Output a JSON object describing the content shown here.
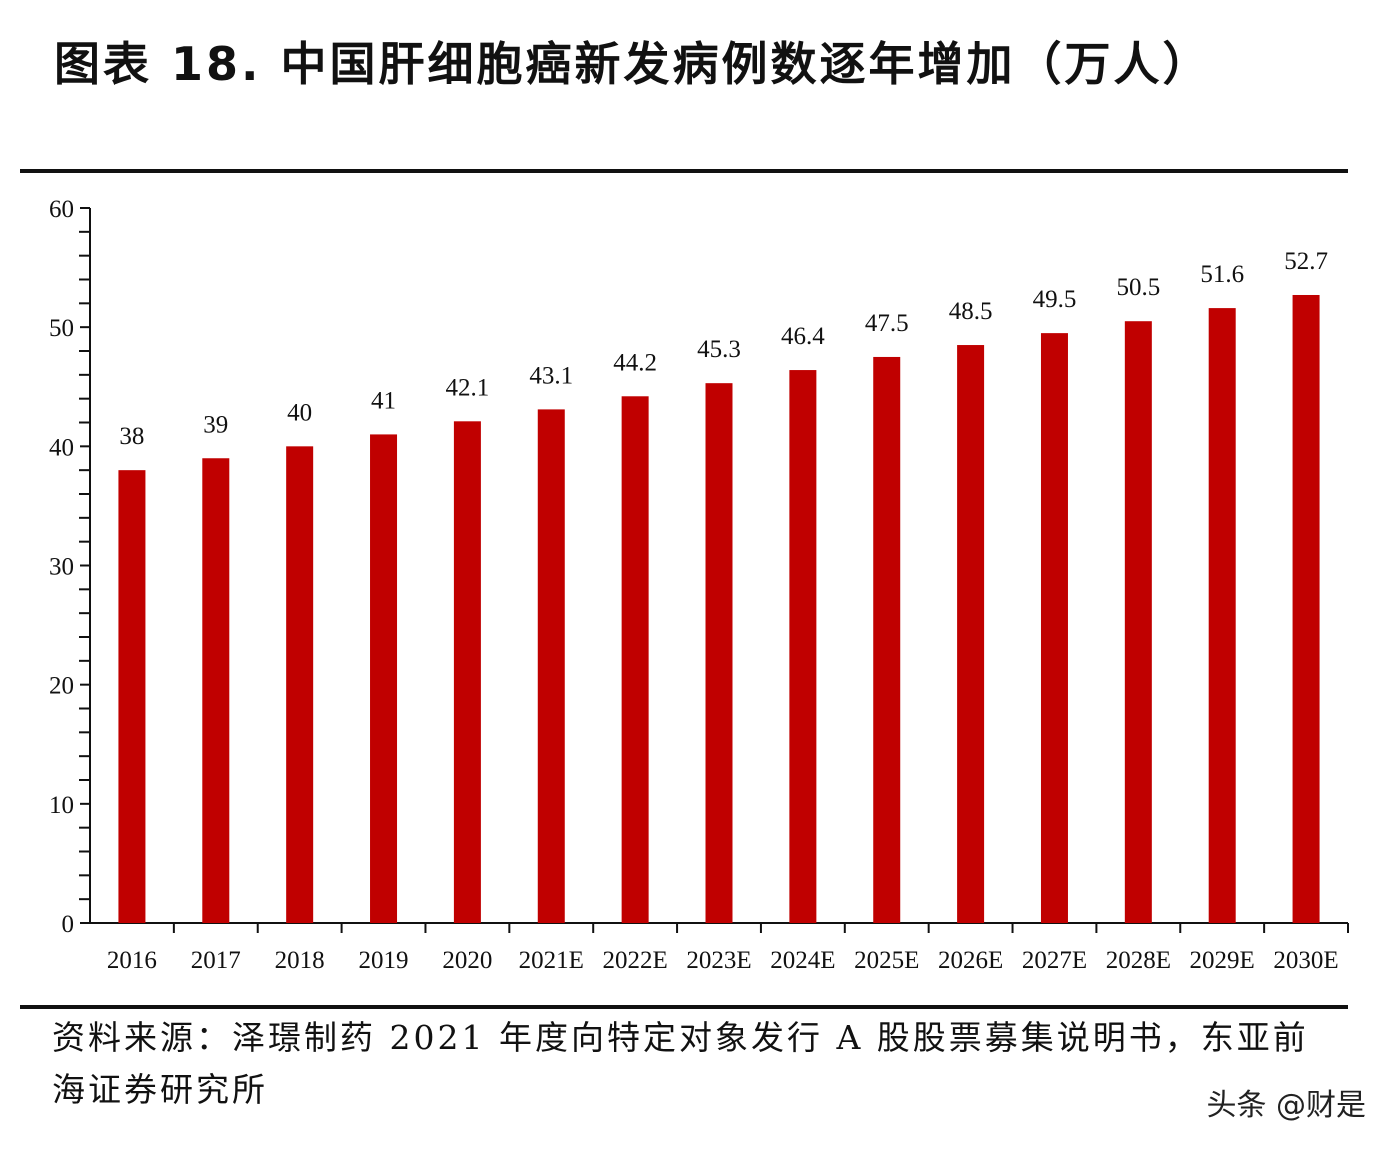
{
  "title": "图表 18. 中国肝细胞癌新发病例数逐年增加（万人）",
  "source": "资料来源：泽璟制药 2021 年度向特定对象发行 A 股股票募集说明书，东亚前海证券研究所",
  "watermark": "头条 @财是",
  "chart_data": {
    "type": "bar",
    "title": "图表 18. 中国肝细胞癌新发病例数逐年增加（万人）",
    "categories": [
      "2016",
      "2017",
      "2018",
      "2019",
      "2020",
      "2021E",
      "2022E",
      "2023E",
      "2024E",
      "2025E",
      "2026E",
      "2027E",
      "2028E",
      "2029E",
      "2030E"
    ],
    "values": [
      38,
      39,
      40,
      41,
      42.1,
      43.1,
      44.2,
      45.3,
      46.4,
      47.5,
      48.5,
      49.5,
      50.5,
      51.6,
      52.7
    ],
    "data_labels": [
      "38",
      "39",
      "40",
      "41",
      "42.1",
      "43.1",
      "44.2",
      "45.3",
      "46.4",
      "47.5",
      "48.5",
      "49.5",
      "50.5",
      "51.6",
      "52.7"
    ],
    "ylim": [
      0,
      60
    ],
    "yticks": [
      0,
      10,
      20,
      30,
      40,
      50,
      60
    ],
    "minor_tick_step": 2,
    "xlabel": "",
    "ylabel": "",
    "grid": false,
    "legend": "none",
    "bar_color": "#c00000"
  }
}
